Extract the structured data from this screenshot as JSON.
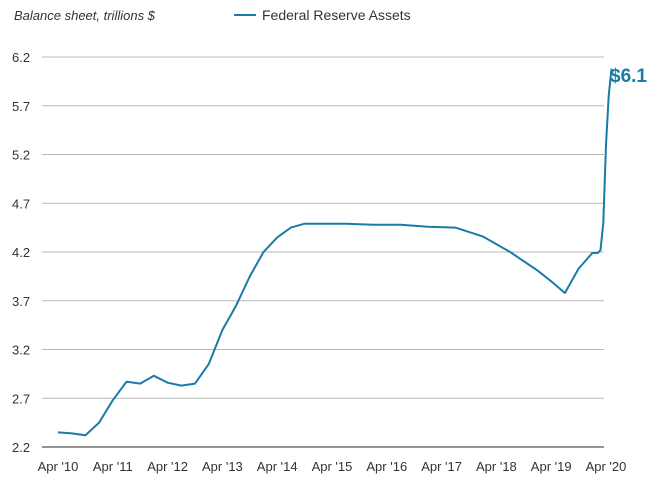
{
  "chart_data": {
    "type": "line",
    "ylabel": "Balance sheet, trillions $",
    "ylim": [
      2.2,
      6.2
    ],
    "y_ticks": [
      "2.2",
      "2.7",
      "3.2",
      "3.7",
      "4.2",
      "4.7",
      "5.2",
      "5.7",
      "6.2"
    ],
    "x_ticks": [
      "Apr '10",
      "Apr '11",
      "Apr '12",
      "Apr '13",
      "Apr '14",
      "Apr '15",
      "Apr '16",
      "Apr '17",
      "Apr '18",
      "Apr '19",
      "Apr '20"
    ],
    "grid": true,
    "legend": "top",
    "line_color": "#1a7ba6",
    "series": [
      {
        "name": "Federal Reserve Assets",
        "x": [
          2010.25,
          2010.5,
          2010.75,
          2011.0,
          2011.25,
          2011.5,
          2011.75,
          2012.0,
          2012.25,
          2012.5,
          2012.75,
          2013.0,
          2013.25,
          2013.5,
          2013.75,
          2014.0,
          2014.25,
          2014.5,
          2014.75,
          2015.0,
          2015.5,
          2016.0,
          2016.5,
          2017.0,
          2017.5,
          2018.0,
          2018.5,
          2019.0,
          2019.25,
          2019.5,
          2019.75,
          2020.0,
          2020.1,
          2020.15,
          2020.2,
          2020.25,
          2020.3,
          2020.35
        ],
        "values": [
          2.35,
          2.34,
          2.32,
          2.45,
          2.68,
          2.87,
          2.85,
          2.93,
          2.86,
          2.83,
          2.85,
          3.05,
          3.4,
          3.65,
          3.95,
          4.2,
          4.35,
          4.45,
          4.49,
          4.49,
          4.49,
          4.48,
          4.48,
          4.46,
          4.45,
          4.36,
          4.2,
          4.01,
          3.9,
          3.78,
          4.03,
          4.19,
          4.19,
          4.22,
          4.5,
          5.3,
          5.8,
          6.08
        ]
      }
    ],
    "end_label": "$6.1"
  }
}
